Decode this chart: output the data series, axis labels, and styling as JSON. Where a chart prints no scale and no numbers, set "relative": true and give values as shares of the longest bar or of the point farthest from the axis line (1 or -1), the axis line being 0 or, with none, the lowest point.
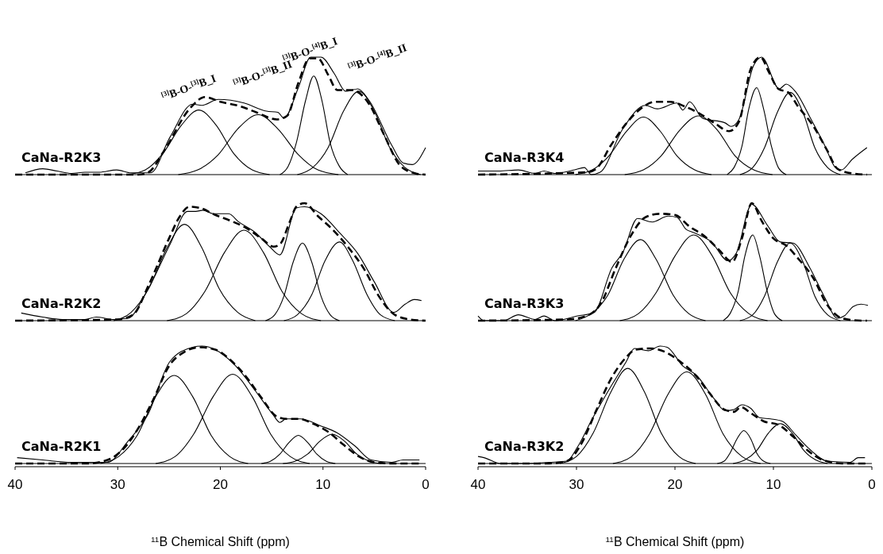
{
  "chart_data": [
    {
      "type": "line",
      "title": "CaNa-R2K3",
      "relative": true,
      "xlim": [
        40,
        0
      ],
      "tick_labels": false,
      "annotations": [
        {
          "text": "$^{[3]}$B-O-$^{[3]}$B_I",
          "x": 22.1,
          "y": 0.55
        },
        {
          "text": "$^{[3]}$B-O-$^{[3]}$B_II",
          "x": 16.3,
          "y": 0.51
        },
        {
          "text": "$^{[3]}$B-O-$^{[4]}$B_I",
          "x": 10.9,
          "y": 0.84
        },
        {
          "text": "$^{[3]}$B-O-$^{[4]}$B_II",
          "x": 6.5,
          "y": 0.71
        }
      ],
      "series": [
        {
          "color": "#000000",
          "x": [
            39.0,
            37.3,
            35.9,
            34.5,
            33.2,
            31.8,
            30.1,
            28.7,
            26.8,
            24.9,
            22.7,
            21.8,
            20.2,
            17.7,
            15.5,
            14.4,
            13.8,
            12.4,
            11.2,
            10.2,
            8.9,
            7.8,
            6.6,
            5.5,
            3.3,
            2.2,
            1.3,
            0.0
          ],
          "values": [
            0.015,
            0.05,
            0.03,
            0.01,
            0.02,
            0.02,
            0.04,
            0.015,
            0.015,
            0.32,
            0.6,
            0.59,
            0.64,
            0.61,
            0.54,
            0.53,
            0.48,
            0.74,
            1.0,
            1.0,
            0.86,
            0.71,
            0.73,
            0.63,
            0.25,
            0.1,
            0.085,
            0.23
          ]
        },
        {
          "color": "#000000",
          "line_style": "dashed",
          "x": [
            40,
            28,
            27,
            25.5,
            23,
            21.5,
            20,
            18,
            16.5,
            14.5,
            13.5,
            12.4,
            11.3,
            10.5,
            9.5,
            8.6,
            7.2,
            5.5,
            4,
            2.5,
            1,
            0
          ],
          "values": [
            0,
            0,
            0.02,
            0.2,
            0.56,
            0.66,
            0.62,
            0.58,
            0.53,
            0.47,
            0.5,
            0.78,
            0.99,
            0.99,
            0.85,
            0.72,
            0.72,
            0.6,
            0.33,
            0.08,
            0.01,
            0
          ]
        },
        {
          "color": "#000000",
          "x": [
            29.0,
            27.3,
            25.6,
            23.8,
            22.1,
            20.4,
            18.7,
            16.9,
            15.2
          ],
          "values": [
            0,
            0.04,
            0.18,
            0.42,
            0.55,
            0.42,
            0.18,
            0.04,
            0
          ]
        },
        {
          "color": "#000000",
          "x": [
            24.1,
            22.2,
            20.2,
            18.3,
            16.3,
            14.4,
            12.4,
            10.5,
            8.5
          ],
          "values": [
            0,
            0.04,
            0.17,
            0.39,
            0.51,
            0.39,
            0.17,
            0.04,
            0
          ]
        },
        {
          "color": "#000000",
          "x": [
            14.2,
            13.4,
            12.6,
            11.7,
            10.9,
            10.1,
            9.3,
            8.4,
            7.6
          ],
          "values": [
            0,
            0.07,
            0.27,
            0.63,
            0.84,
            0.63,
            0.27,
            0.07,
            0
          ]
        },
        {
          "color": "#000000",
          "x": [
            12.5,
            11.0,
            9.5,
            8.0,
            6.5,
            5.0,
            3.5,
            2.0,
            0.5
          ],
          "values": [
            0,
            0.06,
            0.23,
            0.54,
            0.71,
            0.54,
            0.23,
            0.06,
            0
          ]
        }
      ]
    },
    {
      "type": "line",
      "title": "CaNa-R3K4",
      "relative": true,
      "xlim": [
        40,
        0
      ],
      "tick_labels": false,
      "series": [
        {
          "color": "#000000",
          "x": [
            40.0,
            37.9,
            35.9,
            34.2,
            33.3,
            32.2,
            30.2,
            29.2,
            28.5,
            27.6,
            25.3,
            23.0,
            21.8,
            19.8,
            19.2,
            18.5,
            17.2,
            14.9,
            14.3,
            13.5,
            12.0,
            11.2,
            9.4,
            8.7,
            7.7,
            6.3,
            4.8,
            3.7,
            3.1,
            2.0,
            0.5
          ],
          "values": [
            0.03,
            0.03,
            0.04,
            0.01,
            0.03,
            0.01,
            0.04,
            0.06,
            0.0,
            0.02,
            0.39,
            0.59,
            0.56,
            0.61,
            0.55,
            0.62,
            0.48,
            0.44,
            0.41,
            0.47,
            0.93,
            1.0,
            0.73,
            0.77,
            0.7,
            0.49,
            0.25,
            0.06,
            0.04,
            0.13,
            0.23
          ]
        },
        {
          "color": "#000000",
          "line_style": "dashed",
          "x": [
            40,
            29,
            28,
            26.5,
            25,
            23.5,
            22,
            20.5,
            19,
            17.5,
            16,
            14.5,
            13.5,
            12.3,
            11.3,
            10.5,
            9.5,
            8.5,
            7.5,
            6,
            4.5,
            3.5,
            2,
            0.5
          ],
          "values": [
            0,
            0.02,
            0.05,
            0.25,
            0.43,
            0.56,
            0.62,
            0.62,
            0.58,
            0.52,
            0.44,
            0.37,
            0.45,
            0.9,
            1.0,
            0.88,
            0.73,
            0.7,
            0.58,
            0.42,
            0.2,
            0.05,
            0.01,
            0
          ]
        },
        {
          "color": "#000000",
          "x": [
            30.1,
            28.4,
            26.7,
            24.9,
            23.2,
            21.5,
            19.8,
            18.0,
            16.3
          ],
          "values": [
            0,
            0.04,
            0.16,
            0.37,
            0.49,
            0.37,
            0.16,
            0.04,
            0
          ]
        },
        {
          "color": "#000000",
          "x": [
            25.1,
            23.2,
            21.4,
            19.5,
            17.6,
            15.7,
            13.9,
            12.0,
            10.1
          ],
          "values": [
            0,
            0.04,
            0.16,
            0.38,
            0.5,
            0.38,
            0.16,
            0.04,
            0
          ]
        },
        {
          "color": "#000000",
          "x": [
            14.7,
            14.0,
            13.2,
            12.5,
            11.7,
            11.0,
            10.2,
            9.5,
            8.7
          ],
          "values": [
            0,
            0.06,
            0.24,
            0.56,
            0.74,
            0.56,
            0.24,
            0.06,
            0
          ]
        },
        {
          "color": "#000000",
          "x": [
            13.4,
            12.1,
            10.9,
            9.6,
            8.3,
            7.0,
            5.8,
            4.5,
            3.2
          ],
          "values": [
            0,
            0.06,
            0.23,
            0.53,
            0.7,
            0.53,
            0.23,
            0.06,
            0
          ]
        }
      ]
    },
    {
      "type": "line",
      "title": "CaNa-R2K2",
      "relative": true,
      "xlim": [
        40,
        0
      ],
      "tick_labels": false,
      "series": [
        {
          "color": "#000000",
          "x": [
            39.4,
            37.3,
            35.4,
            33.2,
            32.1,
            30.4,
            29.0,
            27.1,
            24.9,
            23.2,
            22.4,
            21.7,
            20.7,
            19.2,
            18.2,
            16.6,
            15.2,
            14.2,
            12.6,
            11.8,
            10.2,
            8.3,
            6.6,
            5.0,
            3.1,
            2.0,
            1.1,
            0.4
          ],
          "values": [
            0.065,
            0.03,
            0.01,
            0.01,
            0.03,
            0.01,
            0.02,
            0.26,
            0.65,
            0.93,
            0.93,
            0.94,
            0.91,
            0.91,
            0.84,
            0.75,
            0.63,
            0.56,
            0.96,
            0.97,
            0.91,
            0.74,
            0.57,
            0.33,
            0.07,
            0.14,
            0.18,
            0.17
          ]
        },
        {
          "color": "#000000",
          "line_style": "dashed",
          "x": [
            40,
            30,
            28.5,
            27,
            25,
            24,
            23,
            22,
            20.5,
            19,
            17.5,
            16,
            14.8,
            14.2,
            13.2,
            12.6,
            11.8,
            10.5,
            9,
            7.5,
            6,
            4.5,
            3,
            1.5,
            0
          ],
          "values": [
            0,
            0.01,
            0.05,
            0.3,
            0.7,
            0.88,
            0.97,
            0.96,
            0.9,
            0.85,
            0.79,
            0.7,
            0.63,
            0.65,
            0.85,
            0.97,
            1.0,
            0.89,
            0.77,
            0.62,
            0.44,
            0.2,
            0.05,
            0.01,
            0
          ]
        },
        {
          "color": "#000000",
          "x": [
            30.4,
            28.7,
            27.0,
            25.2,
            23.5,
            21.8,
            20.1,
            18.3,
            16.6
          ],
          "values": [
            0,
            0.07,
            0.27,
            0.62,
            0.82,
            0.62,
            0.27,
            0.07,
            0
          ]
        },
        {
          "color": "#000000",
          "x": [
            25.2,
            23.3,
            21.5,
            19.6,
            17.7,
            15.8,
            14.0,
            12.1,
            10.2
          ],
          "values": [
            0,
            0.06,
            0.25,
            0.58,
            0.77,
            0.58,
            0.25,
            0.06,
            0
          ]
        },
        {
          "color": "#000000",
          "x": [
            15.6,
            14.7,
            13.8,
            12.9,
            12.0,
            11.1,
            10.2,
            9.3,
            8.4
          ],
          "values": [
            0,
            0.05,
            0.21,
            0.5,
            0.66,
            0.5,
            0.21,
            0.05,
            0
          ]
        },
        {
          "color": "#000000",
          "x": [
            13.8,
            12.5,
            11.1,
            9.8,
            8.4,
            7.1,
            5.7,
            4.4,
            3.0
          ],
          "values": [
            0,
            0.05,
            0.22,
            0.51,
            0.67,
            0.51,
            0.22,
            0.05,
            0
          ]
        }
      ]
    },
    {
      "type": "line",
      "title": "CaNa-R3K3",
      "relative": true,
      "xlim": [
        40,
        0
      ],
      "tick_labels": false,
      "series": [
        {
          "color": "#000000",
          "x": [
            40.0,
            39.4,
            37.4,
            35.9,
            34.2,
            33.3,
            32.2,
            29.9,
            28.2,
            26.4,
            25.3,
            23.8,
            22.3,
            20.7,
            19.8,
            18.9,
            18.1,
            16.3,
            14.6,
            13.8,
            12.2,
            10.6,
            9.3,
            8.0,
            6.3,
            4.8,
            3.5,
            2.8,
            1.9,
            1.1,
            0.4
          ],
          "values": [
            0.04,
            0.0,
            0.0,
            0.05,
            0.01,
            0.04,
            0.0,
            0.04,
            0.07,
            0.45,
            0.58,
            0.87,
            0.84,
            0.89,
            0.88,
            0.78,
            0.75,
            0.67,
            0.51,
            0.57,
            0.99,
            0.81,
            0.67,
            0.66,
            0.45,
            0.2,
            0.02,
            0.04,
            0.12,
            0.14,
            0.13
          ]
        },
        {
          "color": "#000000",
          "line_style": "dashed",
          "x": [
            40,
            31,
            29,
            27.5,
            26,
            24.5,
            23,
            21.5,
            20,
            18.5,
            17,
            15.5,
            14.2,
            13.2,
            12.2,
            11.2,
            10,
            8.7,
            7.5,
            6,
            4.5,
            3,
            1,
            0.5
          ],
          "values": [
            0,
            0.01,
            0.04,
            0.15,
            0.45,
            0.72,
            0.88,
            0.91,
            0.9,
            0.8,
            0.72,
            0.6,
            0.5,
            0.7,
            1.0,
            0.85,
            0.7,
            0.64,
            0.53,
            0.37,
            0.13,
            0.02,
            0,
            0
          ]
        },
        {
          "color": "#000000",
          "x": [
            30.1,
            28.5,
            26.8,
            25.2,
            23.5,
            21.9,
            20.2,
            18.6,
            16.9
          ],
          "values": [
            0,
            0.06,
            0.22,
            0.52,
            0.69,
            0.52,
            0.22,
            0.06,
            0
          ]
        },
        {
          "color": "#000000",
          "x": [
            25.6,
            23.7,
            21.9,
            20.0,
            18.1,
            16.2,
            14.4,
            12.5,
            10.6
          ],
          "values": [
            0,
            0.06,
            0.24,
            0.55,
            0.73,
            0.55,
            0.24,
            0.06,
            0
          ]
        },
        {
          "color": "#000000",
          "x": [
            15.1,
            14.4,
            13.6,
            12.9,
            12.1,
            11.4,
            10.6,
            9.9,
            9.1
          ],
          "values": [
            0,
            0.06,
            0.24,
            0.55,
            0.73,
            0.55,
            0.24,
            0.06,
            0
          ]
        },
        {
          "color": "#000000",
          "x": [
            13.4,
            12.1,
            10.9,
            9.6,
            8.3,
            7.0,
            5.8,
            4.5,
            3.2
          ],
          "values": [
            0,
            0.05,
            0.21,
            0.5,
            0.66,
            0.5,
            0.21,
            0.05,
            0
          ]
        }
      ]
    },
    {
      "type": "line",
      "title": "CaNa-R2K1",
      "relative": true,
      "xlim": [
        40,
        0
      ],
      "xticks": [
        40,
        30,
        20,
        10,
        0
      ],
      "tick_labels": "x",
      "xlabel": "$^{11}$B Chemical Shift (ppm)",
      "series": [
        {
          "color": "#000000",
          "x": [
            39.8,
            37.3,
            34.5,
            32.3,
            31.0,
            29.0,
            27.1,
            24.9,
            22.7,
            21.8,
            20.5,
            18.5,
            16.6,
            14.9,
            14.2,
            13.6,
            12.2,
            10.2,
            8.6,
            6.9,
            5.3,
            3.3,
            2.2,
            0.6
          ],
          "values": [
            0.05,
            0.03,
            0.01,
            0.01,
            0.01,
            0.19,
            0.41,
            0.87,
            0.99,
            1.0,
            0.97,
            0.83,
            0.62,
            0.42,
            0.35,
            0.38,
            0.38,
            0.32,
            0.26,
            0.15,
            0.03,
            0.01,
            0.03,
            0.03
          ]
        },
        {
          "color": "#000000",
          "line_style": "dashed",
          "x": [
            40,
            33,
            31,
            29.5,
            28,
            26.5,
            25,
            23.5,
            22,
            20.5,
            19,
            17.5,
            16,
            14.5,
            13.5,
            12.3,
            11,
            9.5,
            8,
            6.5,
            5,
            3,
            0.5
          ],
          "values": [
            0,
            0,
            0.03,
            0.12,
            0.3,
            0.55,
            0.83,
            0.95,
            0.99,
            0.97,
            0.88,
            0.74,
            0.56,
            0.4,
            0.38,
            0.38,
            0.34,
            0.27,
            0.16,
            0.06,
            0.01,
            0,
            0
          ]
        },
        {
          "color": "#000000",
          "x": [
            31.7,
            29.9,
            28.1,
            26.3,
            24.5,
            22.7,
            20.9,
            19.1,
            17.3
          ],
          "values": [
            0,
            0.06,
            0.24,
            0.57,
            0.75,
            0.57,
            0.24,
            0.06,
            0
          ]
        },
        {
          "color": "#000000",
          "x": [
            26.3,
            24.4,
            22.6,
            20.7,
            18.8,
            16.9,
            15.1,
            13.2,
            11.3
          ],
          "values": [
            0,
            0.06,
            0.25,
            0.57,
            0.76,
            0.57,
            0.25,
            0.06,
            0
          ]
        },
        {
          "color": "#000000",
          "x": [
            16.0,
            15.1,
            14.2,
            13.3,
            12.4,
            11.5,
            10.6,
            9.7,
            8.8
          ],
          "values": [
            0,
            0.02,
            0.08,
            0.18,
            0.24,
            0.18,
            0.08,
            0.02,
            0
          ]
        },
        {
          "color": "#000000",
          "x": [
            13.9,
            12.7,
            11.5,
            10.3,
            9.1,
            7.9,
            6.7,
            5.5,
            4.3
          ],
          "values": [
            0,
            0.02,
            0.08,
            0.19,
            0.25,
            0.19,
            0.08,
            0.02,
            0
          ]
        }
      ]
    },
    {
      "type": "line",
      "title": "CaNa-R3K2",
      "relative": true,
      "xlim": [
        40,
        0
      ],
      "xticks": [
        40,
        30,
        20,
        10,
        0
      ],
      "tick_labels": "x",
      "xlabel": "$^{11}$B Chemical Shift (ppm)",
      "series": [
        {
          "color": "#000000",
          "x": [
            40.0,
            39.4,
            37.7,
            35.1,
            32.8,
            31.0,
            29.9,
            28.4,
            26.4,
            25.0,
            24.1,
            22.7,
            21.5,
            20.8,
            19.2,
            17.8,
            16.1,
            14.9,
            14.0,
            13.2,
            12.3,
            11.4,
            10.3,
            9.1,
            7.7,
            6.3,
            4.5,
            2.2,
            1.4,
            0.7
          ],
          "values": [
            0.06,
            0.05,
            0.0,
            0.0,
            0.01,
            0.02,
            0.14,
            0.38,
            0.67,
            0.86,
            0.98,
            0.96,
            1.0,
            0.99,
            0.83,
            0.75,
            0.56,
            0.45,
            0.46,
            0.5,
            0.47,
            0.39,
            0.38,
            0.36,
            0.24,
            0.12,
            0.02,
            0.01,
            0.05,
            0.05
          ]
        },
        {
          "color": "#000000",
          "line_style": "dashed",
          "x": [
            40,
            33,
            31,
            29.5,
            28,
            26.5,
            25,
            24,
            22.5,
            21,
            19.5,
            18,
            16.5,
            15,
            14,
            13.3,
            12.3,
            11,
            9.5,
            8,
            6.5,
            5,
            3,
            0.5
          ],
          "values": [
            0,
            0,
            0.02,
            0.17,
            0.45,
            0.72,
            0.9,
            0.97,
            0.98,
            0.95,
            0.87,
            0.76,
            0.6,
            0.46,
            0.44,
            0.48,
            0.43,
            0.36,
            0.33,
            0.23,
            0.11,
            0.03,
            0,
            0
          ]
        },
        {
          "color": "#000000",
          "x": [
            31.7,
            30.0,
            28.3,
            26.5,
            24.8,
            23.1,
            21.4,
            19.6,
            17.9
          ],
          "values": [
            0,
            0.06,
            0.26,
            0.61,
            0.81,
            0.61,
            0.26,
            0.06,
            0
          ]
        },
        {
          "color": "#000000",
          "x": [
            26.3,
            24.4,
            22.6,
            20.7,
            18.8,
            16.9,
            15.1,
            13.2,
            11.3
          ],
          "values": [
            0,
            0.06,
            0.25,
            0.59,
            0.78,
            0.59,
            0.25,
            0.06,
            0
          ]
        },
        {
          "color": "#000000",
          "x": [
            15.7,
            15.0,
            14.4,
            13.7,
            13.0,
            12.3,
            11.7,
            11.0,
            10.3
          ],
          "values": [
            0,
            0.02,
            0.09,
            0.21,
            0.28,
            0.21,
            0.09,
            0.02,
            0
          ]
        },
        {
          "color": "#000000",
          "x": [
            14.1,
            12.9,
            11.7,
            10.5,
            9.3,
            8.1,
            6.9,
            5.7,
            4.5
          ],
          "values": [
            0,
            0.03,
            0.11,
            0.26,
            0.34,
            0.26,
            0.11,
            0.03,
            0
          ]
        }
      ]
    }
  ]
}
